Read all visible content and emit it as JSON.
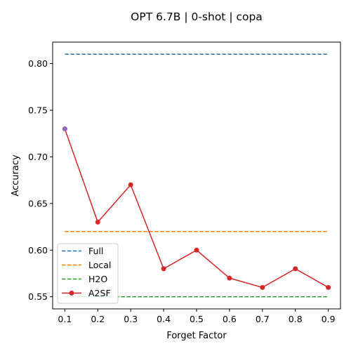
{
  "chart_data": {
    "type": "line",
    "title": "OPT 6.7B | 0-shot | copa",
    "xlabel": "Forget Factor",
    "ylabel": "Accuracy",
    "x": [
      0.1,
      0.2,
      0.3,
      0.4,
      0.5,
      0.6,
      0.7,
      0.8,
      0.9
    ],
    "xticks": [
      "0.1",
      "0.2",
      "0.3",
      "0.4",
      "0.5",
      "0.6",
      "0.7",
      "0.8",
      "0.9"
    ],
    "yticks": [
      "0.55",
      "0.60",
      "0.65",
      "0.70",
      "0.75",
      "0.80"
    ],
    "xlim": [
      0.063,
      0.937
    ],
    "ylim": [
      0.537,
      0.823
    ],
    "grid": false,
    "legend_position": "lower-left",
    "series": [
      {
        "name": "Full",
        "style": "dashed",
        "color": "#1f77b4",
        "values": [
          0.81,
          0.81,
          0.81,
          0.81,
          0.81,
          0.81,
          0.81,
          0.81,
          0.81
        ]
      },
      {
        "name": "Local",
        "style": "dashed",
        "color": "#ff7f0e",
        "values": [
          0.62,
          0.62,
          0.62,
          0.62,
          0.62,
          0.62,
          0.62,
          0.62,
          0.62
        ]
      },
      {
        "name": "H2O",
        "style": "dashed",
        "color": "#2ca02c",
        "values": [
          0.55,
          0.55,
          0.55,
          0.55,
          0.55,
          0.55,
          0.55,
          0.55,
          0.55
        ]
      },
      {
        "name": "A2SF",
        "style": "solid-markers",
        "color": "#d62728",
        "values": [
          0.73,
          0.63,
          0.67,
          0.58,
          0.6,
          0.57,
          0.56,
          0.58,
          0.56
        ]
      }
    ],
    "highlight_point": {
      "x": 0.1,
      "y": 0.73,
      "color": "#9467bd"
    }
  }
}
